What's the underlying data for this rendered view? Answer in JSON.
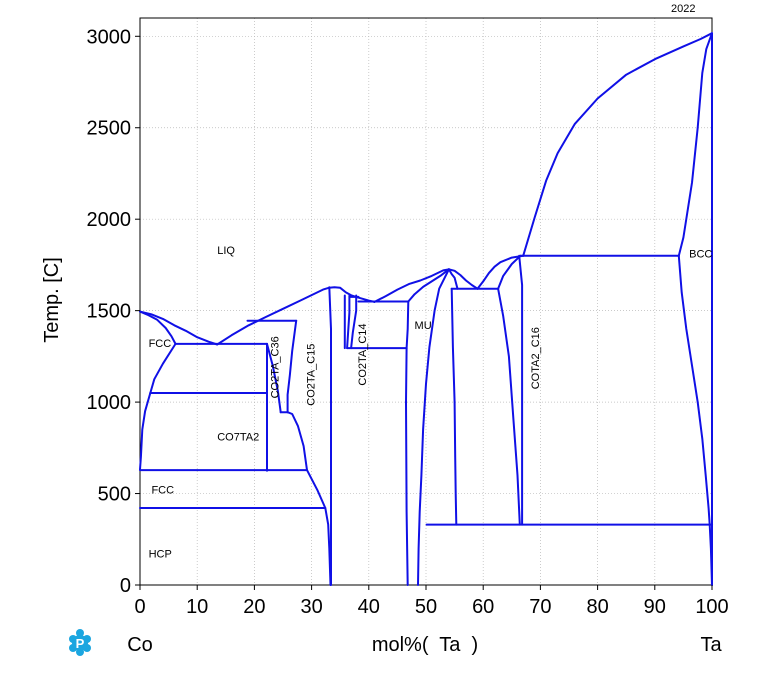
{
  "chart_data": {
    "type": "phase-diagram",
    "year_label": "2022",
    "xlabel": "mol%(  Ta  )",
    "ylabel": "Temp.  [C]",
    "x_left_label": "Co",
    "x_right_label": "Ta",
    "xlim": [
      0,
      100
    ],
    "ylim": [
      0,
      3100
    ],
    "xticks": [
      0,
      10,
      20,
      30,
      40,
      50,
      60,
      70,
      80,
      90,
      100
    ],
    "yticks": [
      0,
      500,
      1000,
      1500,
      2000,
      2500,
      3000
    ],
    "grid": true,
    "line_color": "#1010e6",
    "phase_labels": [
      {
        "text": "LIQ",
        "x": 13.5,
        "y": 1810,
        "rotate": 0
      },
      {
        "text": "FCC",
        "x": 1.5,
        "y": 1300,
        "rotate": 0
      },
      {
        "text": "CO7TA2",
        "x": 13.5,
        "y": 790,
        "rotate": 0
      },
      {
        "text": "FCC",
        "x": 2,
        "y": 500,
        "rotate": 0
      },
      {
        "text": "HCP",
        "x": 1.5,
        "y": 150,
        "rotate": 0
      },
      {
        "text": "CO2TA_C36",
        "x": 24.2,
        "y": 1190,
        "rotate": -90
      },
      {
        "text": "CO2TA_C15",
        "x": 30.5,
        "y": 1150,
        "rotate": -90
      },
      {
        "text": "CO2TA_C14",
        "x": 39.5,
        "y": 1260,
        "rotate": -90
      },
      {
        "text": "MU",
        "x": 48,
        "y": 1400,
        "rotate": 0
      },
      {
        "text": "COTA2_C16",
        "x": 69.8,
        "y": 1240,
        "rotate": -90
      },
      {
        "text": "BCC",
        "x": 96,
        "y": 1790,
        "rotate": 0
      }
    ],
    "series": [
      {
        "points": [
          [
            0,
            1495
          ],
          [
            2,
            1480
          ],
          [
            4,
            1455
          ],
          [
            6,
            1420
          ],
          [
            8,
            1390
          ],
          [
            10,
            1355
          ],
          [
            12,
            1330
          ],
          [
            13.5,
            1315
          ]
        ]
      },
      {
        "points": [
          [
            13.5,
            1315
          ],
          [
            16,
            1365
          ],
          [
            19,
            1420
          ],
          [
            22,
            1465
          ],
          [
            25,
            1510
          ],
          [
            28,
            1555
          ],
          [
            30,
            1585
          ],
          [
            31,
            1600
          ],
          [
            32,
            1615
          ],
          [
            33,
            1625
          ],
          [
            34,
            1628
          ],
          [
            35,
            1625
          ],
          [
            36,
            1600
          ],
          [
            37,
            1583
          ],
          [
            38,
            1573
          ],
          [
            40,
            1555
          ],
          [
            41,
            1548
          ]
        ]
      },
      {
        "points": [
          [
            41,
            1548
          ],
          [
            43,
            1580
          ],
          [
            45,
            1615
          ],
          [
            47,
            1645
          ],
          [
            49,
            1665
          ],
          [
            51,
            1690
          ],
          [
            53,
            1720
          ],
          [
            54,
            1726
          ]
        ]
      },
      {
        "points": [
          [
            54,
            1726
          ],
          [
            55,
            1718
          ],
          [
            56,
            1695
          ],
          [
            57,
            1665
          ],
          [
            58,
            1640
          ],
          [
            59,
            1620
          ]
        ]
      },
      {
        "points": [
          [
            59,
            1620
          ],
          [
            60,
            1660
          ],
          [
            61,
            1705
          ],
          [
            62,
            1740
          ],
          [
            63,
            1765
          ],
          [
            65,
            1790
          ],
          [
            67,
            1800
          ]
        ]
      },
      {
        "points": [
          [
            67,
            1800
          ],
          [
            69,
            2010
          ],
          [
            71,
            2210
          ],
          [
            73,
            2360
          ],
          [
            76,
            2520
          ],
          [
            80,
            2660
          ],
          [
            85,
            2790
          ],
          [
            90,
            2875
          ],
          [
            95,
            2945
          ],
          [
            98,
            2985
          ],
          [
            100,
            3017
          ]
        ]
      },
      {
        "points": [
          [
            0,
            1495
          ],
          [
            1.5,
            1475
          ],
          [
            3,
            1450
          ],
          [
            4.5,
            1405
          ],
          [
            5.5,
            1360
          ],
          [
            6.2,
            1318
          ]
        ]
      },
      {
        "points": [
          [
            6.2,
            1318
          ],
          [
            4,
            1210
          ],
          [
            2.5,
            1125
          ],
          [
            1.8,
            1050
          ]
        ]
      },
      {
        "points": [
          [
            1.8,
            1050
          ],
          [
            0.9,
            950
          ],
          [
            0.4,
            850
          ],
          [
            0.15,
            700
          ],
          [
            0,
            632
          ]
        ]
      },
      {
        "points": [
          [
            6.2,
            1318
          ],
          [
            22.2,
            1318
          ]
        ]
      },
      {
        "points": [
          [
            1.8,
            1050
          ],
          [
            22.2,
            1050
          ]
        ]
      },
      {
        "points": [
          [
            0,
            628
          ],
          [
            29.2,
            628
          ]
        ]
      },
      {
        "points": [
          [
            0,
            421
          ],
          [
            32.4,
            421
          ]
        ]
      },
      {
        "points": [
          [
            22.2,
            1318
          ],
          [
            22.2,
            625
          ]
        ]
      },
      {
        "points": [
          [
            22.2,
            1318
          ],
          [
            23.2,
            1200
          ],
          [
            24.1,
            1060
          ],
          [
            24.6,
            945
          ]
        ]
      },
      {
        "points": [
          [
            18.8,
            1445
          ],
          [
            27.3,
            1445
          ]
        ]
      },
      {
        "points": [
          [
            27.3,
            1445
          ],
          [
            26.6,
            1280
          ],
          [
            26.2,
            1150
          ],
          [
            25.8,
            1040
          ],
          [
            25.8,
            945
          ]
        ]
      },
      {
        "points": [
          [
            24.6,
            945
          ],
          [
            25.8,
            945
          ]
        ]
      },
      {
        "points": [
          [
            25.8,
            945
          ],
          [
            26.6,
            935
          ],
          [
            27.6,
            870
          ],
          [
            28.6,
            760
          ],
          [
            29.2,
            628
          ],
          [
            31,
            520
          ],
          [
            32.4,
            421
          ],
          [
            32.9,
            330
          ],
          [
            33.1,
            200
          ],
          [
            33.3,
            0
          ]
        ]
      },
      {
        "points": [
          [
            33.1,
            1628
          ],
          [
            33.4,
            1400
          ],
          [
            33.4,
            800
          ],
          [
            33.4,
            0
          ]
        ]
      },
      {
        "points": [
          [
            35.8,
            1583
          ],
          [
            35.8,
            1295
          ]
        ]
      },
      {
        "points": [
          [
            36.6,
            1583
          ],
          [
            36.6,
            1490
          ],
          [
            36.2,
            1295
          ]
        ]
      },
      {
        "points": [
          [
            36.2,
            1295
          ],
          [
            46.6,
            1295
          ]
        ]
      },
      {
        "points": [
          [
            36.6,
            1575
          ],
          [
            38.2,
            1575
          ]
        ]
      },
      {
        "points": [
          [
            37.8,
            1583
          ],
          [
            37.8,
            1500
          ],
          [
            37.2,
            1380
          ],
          [
            36.9,
            1295
          ]
        ]
      },
      {
        "points": [
          [
            38.2,
            1550
          ],
          [
            46.9,
            1550
          ]
        ]
      },
      {
        "points": [
          [
            46.9,
            1550
          ],
          [
            46.8,
            1400
          ],
          [
            46.6,
            1295
          ],
          [
            46.5,
            1000
          ],
          [
            46.6,
            400
          ],
          [
            46.8,
            0
          ]
        ]
      },
      {
        "points": [
          [
            46.9,
            1550
          ],
          [
            48,
            1590
          ],
          [
            49.5,
            1630
          ],
          [
            51,
            1660
          ],
          [
            52.5,
            1690
          ],
          [
            54,
            1726
          ]
        ]
      },
      {
        "points": [
          [
            54,
            1726
          ],
          [
            52.3,
            1620
          ],
          [
            51.5,
            1500
          ],
          [
            50.6,
            1300
          ],
          [
            50,
            1100
          ],
          [
            49.5,
            850
          ],
          [
            49.2,
            600
          ],
          [
            48.9,
            400
          ],
          [
            48.7,
            200
          ],
          [
            48.6,
            0
          ]
        ]
      },
      {
        "points": [
          [
            54,
            1726
          ],
          [
            54.5,
            1700
          ],
          [
            55,
            1680
          ],
          [
            55.5,
            1620
          ]
        ]
      },
      {
        "points": [
          [
            54.5,
            1620
          ],
          [
            62.6,
            1620
          ]
        ]
      },
      {
        "points": [
          [
            54.5,
            1620
          ],
          [
            54.7,
            1300
          ],
          [
            55,
            1000
          ],
          [
            55.1,
            700
          ],
          [
            55.2,
            500
          ],
          [
            55.3,
            330
          ]
        ]
      },
      {
        "points": [
          [
            62.6,
            1620
          ],
          [
            63.5,
            1470
          ],
          [
            64.5,
            1250
          ],
          [
            65.3,
            900
          ],
          [
            66,
            600
          ],
          [
            66.4,
            330
          ]
        ]
      },
      {
        "points": [
          [
            62.6,
            1620
          ],
          [
            63.5,
            1690
          ],
          [
            65,
            1755
          ],
          [
            66.5,
            1800
          ]
        ]
      },
      {
        "points": [
          [
            66.3,
            1800
          ],
          [
            66.8,
            1640
          ],
          [
            66.8,
            330
          ]
        ]
      },
      {
        "points": [
          [
            66.5,
            1800
          ],
          [
            94.2,
            1800
          ]
        ]
      },
      {
        "points": [
          [
            94.2,
            1800
          ],
          [
            94.7,
            1600
          ],
          [
            95.5,
            1400
          ],
          [
            96.5,
            1200
          ],
          [
            97.5,
            1000
          ],
          [
            98.3,
            800
          ],
          [
            98.9,
            600
          ],
          [
            99.4,
            420
          ],
          [
            99.6,
            330
          ]
        ]
      },
      {
        "points": [
          [
            99.6,
            330
          ],
          [
            99.8,
            200
          ],
          [
            100,
            0
          ]
        ]
      },
      {
        "points": [
          [
            50.1,
            330
          ],
          [
            100,
            330
          ]
        ]
      },
      {
        "points": [
          [
            94.2,
            1800
          ],
          [
            95,
            1900
          ],
          [
            96.5,
            2200
          ],
          [
            97.5,
            2500
          ],
          [
            98.3,
            2800
          ],
          [
            99,
            2930
          ],
          [
            100,
            3017
          ]
        ]
      },
      {
        "points": [
          [
            100,
            3017
          ],
          [
            100,
            0
          ]
        ]
      }
    ]
  },
  "logo": {
    "icon": "pandat-p-logo-icon",
    "color": "#1ba6e0"
  }
}
